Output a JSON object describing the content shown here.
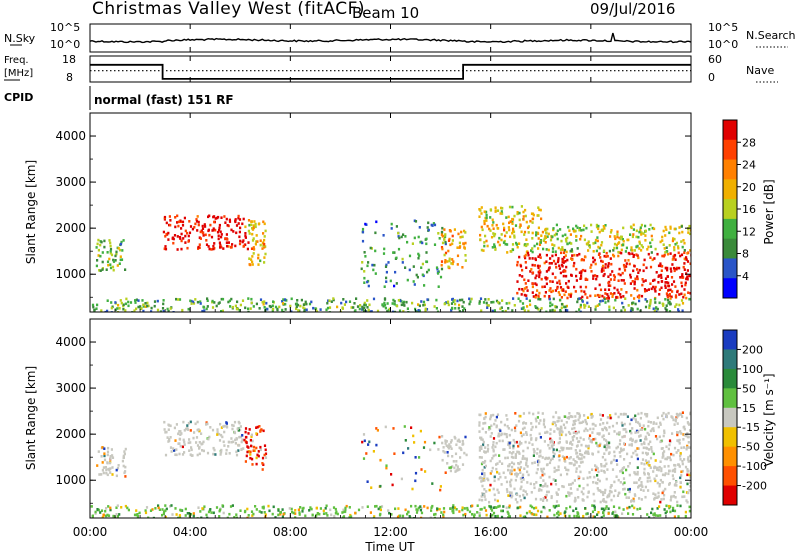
{
  "chart_data": {
    "type": "heatmap",
    "title": "Christmas Valley West (fitACF)",
    "beam_label": "Beam 10",
    "date": "09/Jul/2016",
    "xlabel": "Time UT",
    "x_ticks": [
      "00:00",
      "04:00",
      "08:00",
      "12:00",
      "16:00",
      "20:00",
      "00:00"
    ],
    "x_range_hours": [
      0,
      24
    ],
    "noise_panel": {
      "left_label": "N.Sky",
      "left_ticks": [
        "10^5",
        "10^0"
      ],
      "right_label": "N.Search",
      "right_ticks": [
        "10^5",
        "10^0"
      ]
    },
    "freq_panel": {
      "left_label_1": "Freq.",
      "left_label_2": "[MHz]",
      "left_ticks": [
        "18",
        "8"
      ],
      "right_label": "Nave",
      "right_ticks": [
        "60",
        "0"
      ],
      "freq_mhz": [
        {
          "start_h": 0,
          "end_h": 2.9,
          "value": 14.6
        },
        {
          "start_h": 2.9,
          "end_h": 14.9,
          "value": 9.2
        },
        {
          "start_h": 14.9,
          "end_h": 24,
          "value": 14.6
        }
      ],
      "nave_dotted": 26
    },
    "cpid": {
      "label": "CPID",
      "text": "normal (fast) 151 RF"
    },
    "power_panel": {
      "ylabel": "Slant Range [km]",
      "y_ticks": [
        "1000",
        "2000",
        "3000",
        "4000"
      ],
      "y_range_km": [
        180,
        4500
      ],
      "colorbar_label": "Power [dB]",
      "colorbar_ticks": [
        "4",
        "8",
        "12",
        "16",
        "20",
        "24",
        "28"
      ],
      "colorbar_colors": [
        "#0000ff",
        "#2a55c8",
        "#3a8a3a",
        "#40b040",
        "#b8d020",
        "#f0b000",
        "#ff8000",
        "#ff4000",
        "#e00000"
      ],
      "regions": [
        {
          "t0": 0.2,
          "t1": 1.4,
          "r0": 1100,
          "r1": 1800,
          "level": 0.35
        },
        {
          "t0": 2.9,
          "t1": 6.3,
          "r0": 1550,
          "r1": 2300,
          "level": 0.9
        },
        {
          "t0": 6.1,
          "t1": 7.0,
          "r0": 1200,
          "r1": 2200,
          "level": 0.55
        },
        {
          "t0": 10.8,
          "t1": 14.2,
          "r0": 750,
          "r1": 2200,
          "level": 0.25
        },
        {
          "t0": 14.0,
          "t1": 15.0,
          "r0": 1150,
          "r1": 2000,
          "level": 0.6
        },
        {
          "t0": 15.5,
          "t1": 18.0,
          "r0": 1500,
          "r1": 2500,
          "level": 0.5
        },
        {
          "t0": 17.0,
          "t1": 24.0,
          "r0": 500,
          "r1": 1500,
          "level": 0.85
        },
        {
          "t0": 18.0,
          "t1": 24.0,
          "r0": 1500,
          "r1": 2100,
          "level": 0.45
        },
        {
          "t0": 0.0,
          "t1": 24.0,
          "r0": 200,
          "r1": 500,
          "level": 0.3
        }
      ]
    },
    "velocity_panel": {
      "ylabel": "Slant Range [km]",
      "y_ticks": [
        "1000",
        "2000",
        "3000",
        "4000"
      ],
      "y_range_km": [
        180,
        4500
      ],
      "colorbar_label": "Velocity [m s⁻¹]",
      "colorbar_ticks": [
        "200",
        "100",
        "50",
        "15",
        "-15",
        "-50",
        "-100",
        "-200"
      ],
      "colorbar_colors": [
        "#1a3cc0",
        "#2e7a7a",
        "#2a8a3a",
        "#60c040",
        "#c8c8c0",
        "#f0c000",
        "#ff9000",
        "#ff5000",
        "#e00000"
      ],
      "regions": [
        {
          "t0": 0.2,
          "t1": 1.4,
          "r0": 1100,
          "r1": 1800,
          "class": "ground"
        },
        {
          "t0": 2.9,
          "t1": 6.1,
          "r0": 1550,
          "r1": 2300,
          "class": "ground"
        },
        {
          "t0": 6.1,
          "t1": 7.0,
          "r0": 1250,
          "r1": 2200,
          "class": "negative"
        },
        {
          "t0": 10.8,
          "t1": 14.2,
          "r0": 750,
          "r1": 2200,
          "class": "mixed"
        },
        {
          "t0": 14.0,
          "t1": 15.0,
          "r0": 1150,
          "r1": 2000,
          "class": "ground"
        },
        {
          "t0": 15.5,
          "t1": 24.0,
          "r0": 550,
          "r1": 2500,
          "class": "ground"
        },
        {
          "t0": 0.0,
          "t1": 24.0,
          "r0": 200,
          "r1": 480,
          "class": "low-positive"
        }
      ]
    }
  }
}
